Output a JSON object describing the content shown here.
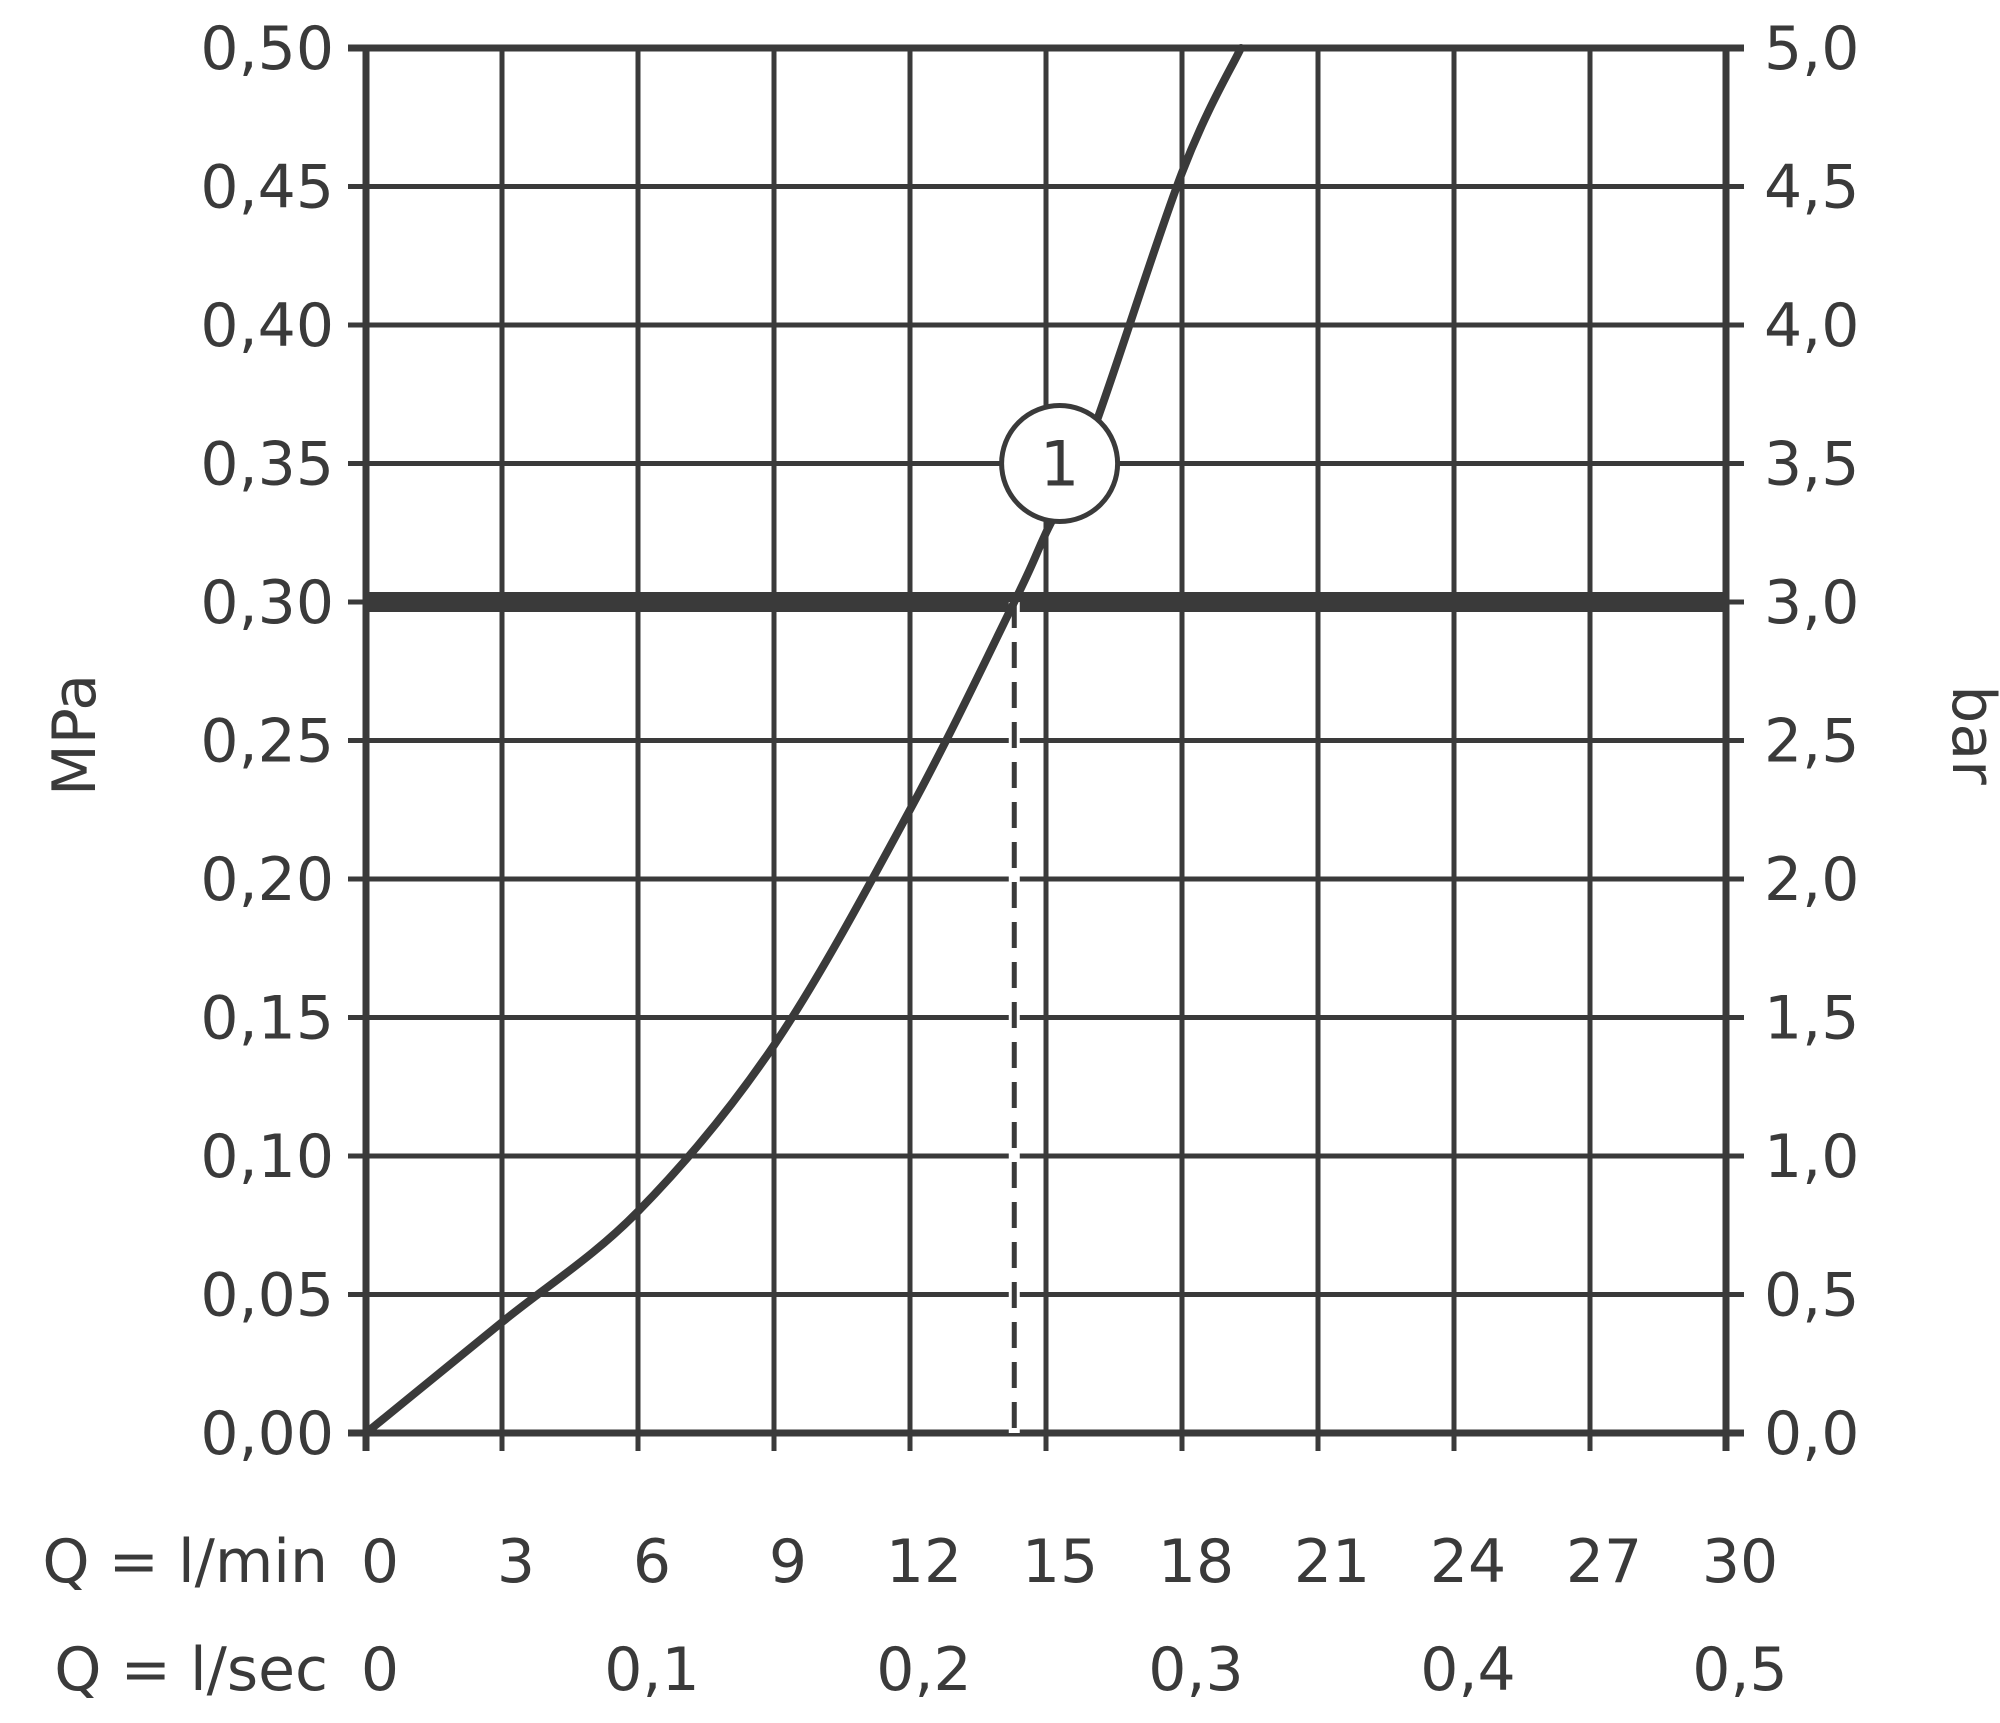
{
  "chart_data": {
    "type": "line",
    "title": "",
    "left_axis": {
      "label": "MPa",
      "ylim": [
        0,
        0.5
      ],
      "ticks": [
        0.0,
        0.05,
        0.1,
        0.15,
        0.2,
        0.25,
        0.3,
        0.35,
        0.4,
        0.45,
        0.5
      ],
      "tick_labels": [
        "0,00",
        "0,05",
        "0,10",
        "0,15",
        "0,20",
        "0,25",
        "0,30",
        "0,35",
        "0,40",
        "0,45",
        "0,50"
      ]
    },
    "right_axis": {
      "label": "bar",
      "ylim": [
        0,
        5
      ],
      "tick_labels": [
        "0,0",
        "0,5",
        "1,0",
        "1,5",
        "2,0",
        "2,5",
        "3,0",
        "3,5",
        "4,0",
        "4,5",
        "5,0"
      ]
    },
    "x_axis_primary": {
      "label": "Q = l/min",
      "xlim": [
        0,
        30
      ],
      "ticks": [
        0,
        3,
        6,
        9,
        12,
        15,
        18,
        21,
        24,
        27,
        30
      ],
      "tick_labels": [
        "0",
        "3",
        "6",
        "9",
        "12",
        "15",
        "18",
        "21",
        "24",
        "27",
        "30"
      ]
    },
    "x_axis_secondary": {
      "label": "Q = l/sec",
      "ticks_lmin": [
        0,
        6,
        12,
        18,
        24,
        30
      ],
      "tick_labels": [
        "0",
        "0,1",
        "0,2",
        "0,3",
        "0,4",
        "0,5"
      ]
    },
    "grid": true,
    "series": [
      {
        "name": "",
        "x": [
          0,
          3,
          6,
          9,
          12,
          14.3,
          15,
          16,
          18,
          19.3
        ],
        "y": [
          0.0,
          0.04,
          0.08,
          0.14,
          0.225,
          0.3,
          0.325,
          0.36,
          0.455,
          0.5
        ]
      }
    ],
    "reference_line": {
      "y": 0.3
    },
    "marker_line": {
      "x": 14.3,
      "y_from": 0,
      "y_to": 0.3,
      "style": "dashed"
    },
    "badge": {
      "text": "1",
      "x": 15.3,
      "y": 0.35
    }
  }
}
